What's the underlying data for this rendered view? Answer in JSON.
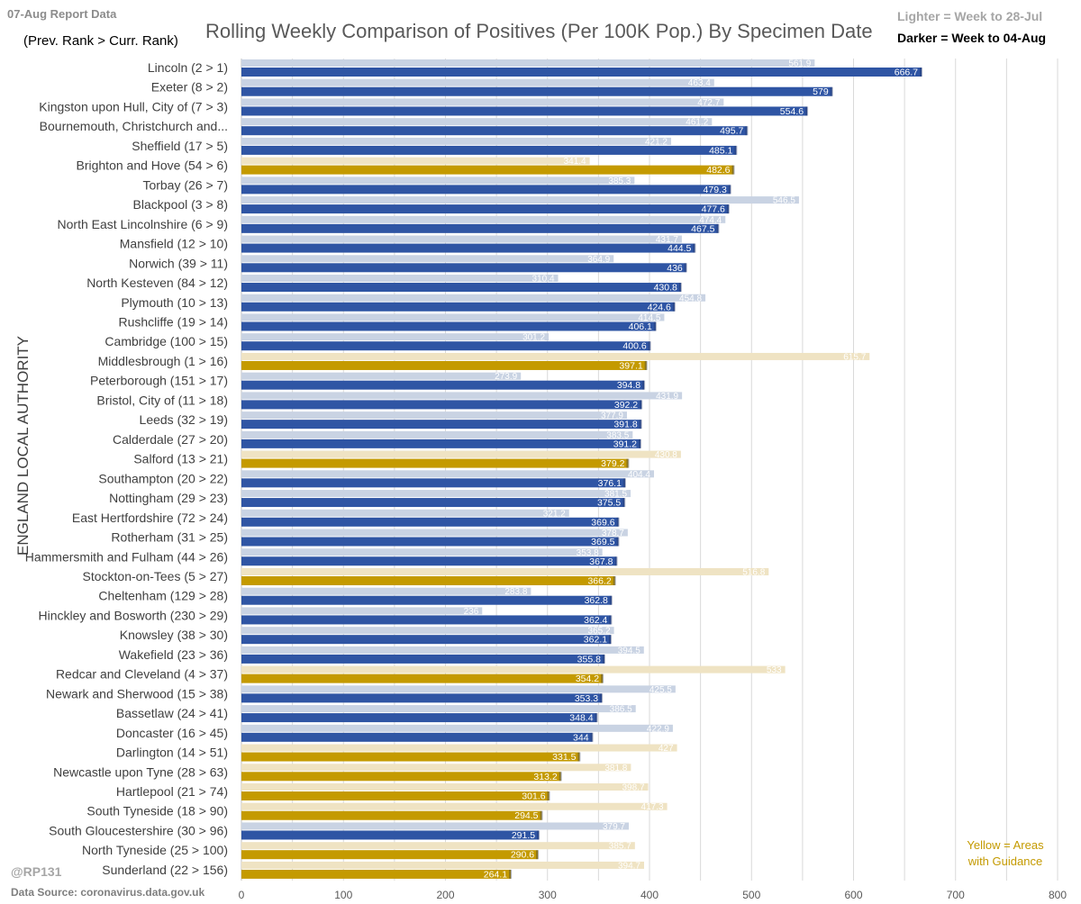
{
  "header": {
    "report_label": "07-Aug Report Data",
    "rank_note": "(Prev. Rank > Curr. Rank)",
    "title": "Rolling Weekly Comparison of Positives  (Per 100K Pop.) By Specimen Date",
    "legend_lighter": "Lighter =  Week to 28-Jul",
    "legend_darker": "Darker =  Week to 04-Aug"
  },
  "footer": {
    "handle": "@RP131",
    "source": "Data Source: coronavirus.data.gov.uk",
    "yellow_note": "Yellow = Areas with Guidance"
  },
  "colors": {
    "blue_dark": "#2f55a4",
    "blue_light": "#c9d3e3",
    "gold_dark": "#c49a00",
    "gold_light": "#efe3c3",
    "grid": "#d9d9d9"
  },
  "chart_data": {
    "type": "bar",
    "orientation": "horizontal",
    "title": "Rolling Weekly Comparison of Positives  (Per 100K Pop.) By Specimen Date",
    "ylabel": "ENGLAND LOCAL AUTHORITY",
    "xlabel": "",
    "xlim": [
      0,
      800
    ],
    "xticks": [
      0,
      100,
      200,
      300,
      400,
      500,
      600,
      700,
      800
    ],
    "grid": true,
    "series": [
      {
        "name": "Week to 28-Jul",
        "shade": "lighter"
      },
      {
        "name": "Week to 04-Aug",
        "shade": "darker"
      }
    ],
    "categories": [
      {
        "label": "Lincoln (2 > 1)",
        "prev": 561.9,
        "curr": 666.7,
        "guidance": false
      },
      {
        "label": "Exeter (8 > 2)",
        "prev": 463.4,
        "curr": 579,
        "guidance": false
      },
      {
        "label": "Kingston upon Hull, City of (7 > 3)",
        "prev": 472.7,
        "curr": 554.6,
        "guidance": false
      },
      {
        "label": "Bournemouth, Christchurch and...",
        "prev": 461.2,
        "curr": 495.7,
        "guidance": false
      },
      {
        "label": "Sheffield (17 > 5)",
        "prev": 421.2,
        "curr": 485.1,
        "guidance": false
      },
      {
        "label": "Brighton and Hove (54 > 6)",
        "prev": 341.4,
        "curr": 482.6,
        "guidance": true
      },
      {
        "label": "Torbay (26 > 7)",
        "prev": 385.3,
        "curr": 479.3,
        "guidance": false
      },
      {
        "label": "Blackpool (3 > 8)",
        "prev": 546.5,
        "curr": 477.6,
        "guidance": false
      },
      {
        "label": "North East Lincolnshire (6 > 9)",
        "prev": 474.4,
        "curr": 467.5,
        "guidance": false
      },
      {
        "label": "Mansfield (12 > 10)",
        "prev": 431.7,
        "curr": 444.5,
        "guidance": false
      },
      {
        "label": "Norwich (39 > 11)",
        "prev": 364.9,
        "curr": 436,
        "guidance": false
      },
      {
        "label": "North Kesteven (84 > 12)",
        "prev": 310.4,
        "curr": 430.8,
        "guidance": false
      },
      {
        "label": "Plymouth (10 > 13)",
        "prev": 454.8,
        "curr": 424.6,
        "guidance": false
      },
      {
        "label": "Rushcliffe (19 > 14)",
        "prev": 414.5,
        "curr": 406.1,
        "guidance": false
      },
      {
        "label": "Cambridge (100 > 15)",
        "prev": 301.2,
        "curr": 400.6,
        "guidance": false
      },
      {
        "label": "Middlesbrough (1 > 16)",
        "prev": 615.7,
        "curr": 397.1,
        "guidance": true
      },
      {
        "label": "Peterborough (151 > 17)",
        "prev": 273.9,
        "curr": 394.8,
        "guidance": false
      },
      {
        "label": "Bristol, City of (11 > 18)",
        "prev": 431.9,
        "curr": 392.2,
        "guidance": false
      },
      {
        "label": "Leeds (32 > 19)",
        "prev": 377.9,
        "curr": 391.8,
        "guidance": false
      },
      {
        "label": "Calderdale (27 > 20)",
        "prev": 383.5,
        "curr": 391.2,
        "guidance": false
      },
      {
        "label": "Salford (13 > 21)",
        "prev": 430.8,
        "curr": 379.2,
        "guidance": true
      },
      {
        "label": "Southampton (20 > 22)",
        "prev": 404.4,
        "curr": 376.1,
        "guidance": false
      },
      {
        "label": "Nottingham (29 > 23)",
        "prev": 381.5,
        "curr": 375.5,
        "guidance": false
      },
      {
        "label": "East Hertfordshire (72 > 24)",
        "prev": 321.2,
        "curr": 369.6,
        "guidance": false
      },
      {
        "label": "Rotherham (31 > 25)",
        "prev": 378.7,
        "curr": 369.5,
        "guidance": false
      },
      {
        "label": "Hammersmith and Fulham (44 > 26)",
        "prev": 353.8,
        "curr": 367.8,
        "guidance": false
      },
      {
        "label": "Stockton-on-Tees (5 > 27)",
        "prev": 516.8,
        "curr": 366.2,
        "guidance": true
      },
      {
        "label": "Cheltenham (129 > 28)",
        "prev": 283.8,
        "curr": 362.8,
        "guidance": false
      },
      {
        "label": "Hinckley and Bosworth (230 > 29)",
        "prev": 236,
        "curr": 362.4,
        "guidance": false
      },
      {
        "label": "Knowsley (38 > 30)",
        "prev": 365.2,
        "curr": 362.1,
        "guidance": false
      },
      {
        "label": "Wakefield (23 > 36)",
        "prev": 394.5,
        "curr": 355.8,
        "guidance": false
      },
      {
        "label": "Redcar and Cleveland (4 > 37)",
        "prev": 533,
        "curr": 354.2,
        "guidance": true
      },
      {
        "label": "Newark and Sherwood (15 > 38)",
        "prev": 425.5,
        "curr": 353.3,
        "guidance": false
      },
      {
        "label": "Bassetlaw (24 > 41)",
        "prev": 386.5,
        "curr": 348.4,
        "guidance": false
      },
      {
        "label": "Doncaster (16 > 45)",
        "prev": 422.9,
        "curr": 344,
        "guidance": false
      },
      {
        "label": "Darlington (14 > 51)",
        "prev": 427,
        "curr": 331.5,
        "guidance": true
      },
      {
        "label": "Newcastle upon Tyne (28 > 63)",
        "prev": 381.8,
        "curr": 313.2,
        "guidance": true
      },
      {
        "label": "Hartlepool (21 > 74)",
        "prev": 398.7,
        "curr": 301.6,
        "guidance": true
      },
      {
        "label": "South Tyneside (18 > 90)",
        "prev": 417.3,
        "curr": 294.5,
        "guidance": true
      },
      {
        "label": "South Gloucestershire (30 > 96)",
        "prev": 379.7,
        "curr": 291.5,
        "guidance": false
      },
      {
        "label": "North Tyneside (25 > 100)",
        "prev": 385.7,
        "curr": 290.6,
        "guidance": true
      },
      {
        "label": "Sunderland (22 > 156)",
        "prev": 394.7,
        "curr": 264.1,
        "guidance": true
      }
    ]
  }
}
